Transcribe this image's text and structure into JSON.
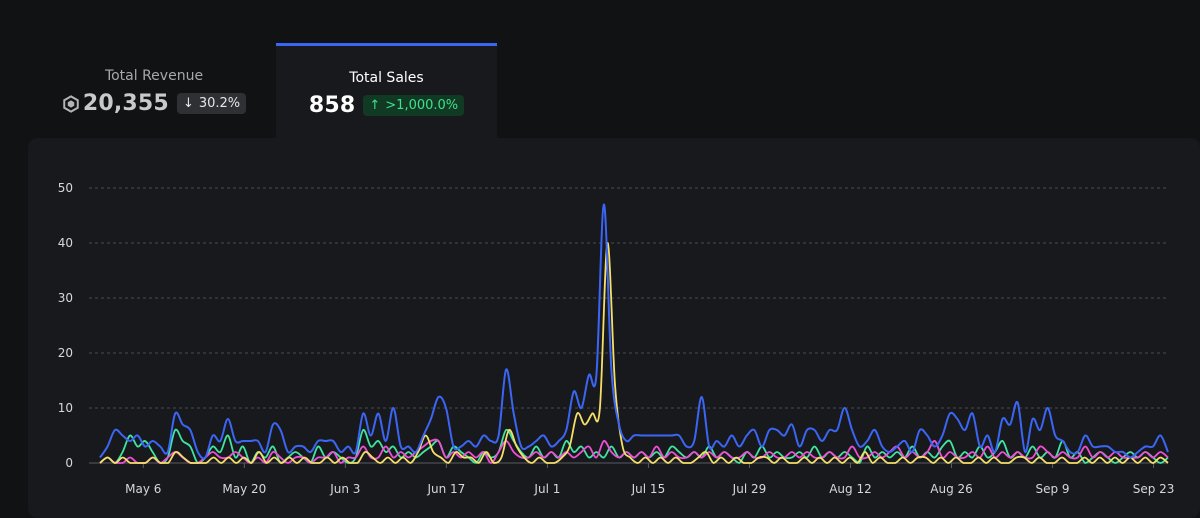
{
  "tabs": {
    "revenue": {
      "label": "Total Revenue",
      "value": "20,355",
      "change": "30.2%",
      "direction": "down",
      "icon": "token-icon"
    },
    "sales": {
      "label": "Total Sales",
      "value": "858",
      "change": ">1,000.0%",
      "direction": "up"
    }
  },
  "colors": {
    "background": "#111214",
    "panel": "#18191d",
    "active_tab_border": "#3b66f5",
    "badge_up_bg": "#113a25",
    "badge_up_text": "#40e08a",
    "badge_down_bg": "#2e3033"
  },
  "chart_data": {
    "type": "line",
    "ylim": [
      0,
      50
    ],
    "yticks": [
      0,
      10,
      20,
      30,
      40,
      50
    ],
    "grid": true,
    "x_range": [
      "2024-04-30",
      "2024-09-25"
    ],
    "x_tick_labels": [
      "May 6",
      "May 20",
      "Jun 3",
      "Jun 17",
      "Jul 1",
      "Jul 15",
      "Jul 29",
      "Aug 12",
      "Aug 26",
      "Sep 9",
      "Sep 23"
    ],
    "series": [
      {
        "color": "#3b66f5",
        "values": [
          1,
          3,
          6,
          5,
          4,
          5,
          3,
          4,
          3,
          2,
          9,
          7,
          6,
          2,
          1,
          5,
          4,
          8,
          4,
          4,
          4,
          4,
          2,
          7,
          6,
          2,
          3,
          3,
          2,
          4,
          4,
          4,
          2,
          3,
          2,
          9,
          5,
          9,
          4,
          10,
          3,
          3,
          2,
          5,
          8,
          12,
          10,
          3,
          3,
          4,
          3,
          5,
          4,
          5,
          17,
          9,
          3,
          3,
          4,
          5,
          3,
          4,
          6,
          13,
          10,
          16,
          16,
          47,
          17,
          7,
          4,
          5,
          5,
          5,
          5,
          5,
          5,
          5,
          3,
          4,
          12,
          3,
          4,
          3,
          5,
          3,
          5,
          6,
          3,
          6,
          6,
          5,
          7,
          3,
          6,
          6,
          4,
          6,
          6,
          10,
          6,
          3,
          4,
          6,
          3,
          2,
          3,
          4,
          2,
          6,
          5,
          3,
          5,
          9,
          8,
          6,
          9,
          3,
          5,
          2,
          8,
          7,
          11,
          2,
          8,
          6,
          10,
          5,
          4,
          2,
          2,
          5,
          3,
          3,
          3,
          2,
          2,
          1,
          2,
          3,
          3,
          5,
          2
        ]
      },
      {
        "color": "#f5df6a",
        "values": [
          0,
          1,
          0,
          1,
          0,
          0,
          0,
          1,
          0,
          0,
          2,
          1,
          0,
          0,
          0,
          1,
          0,
          1,
          0,
          1,
          0,
          2,
          0,
          1,
          0,
          1,
          0,
          1,
          0,
          0,
          1,
          0,
          1,
          0,
          0,
          2,
          1,
          0,
          1,
          0,
          1,
          0,
          2,
          5,
          2,
          1,
          0,
          2,
          1,
          1,
          0,
          2,
          0,
          1,
          6,
          3,
          1,
          0,
          1,
          0,
          0,
          1,
          3,
          9,
          7,
          9,
          10,
          40,
          14,
          3,
          1,
          0,
          1,
          0,
          1,
          0,
          1,
          0,
          0,
          1,
          2,
          0,
          1,
          0,
          1,
          0,
          0,
          1,
          1,
          0,
          1,
          0,
          0,
          1,
          0,
          1,
          0,
          1,
          0,
          1,
          0,
          2,
          0,
          1,
          0,
          0,
          1,
          0,
          1,
          1,
          0,
          1,
          0,
          1,
          0,
          0,
          1,
          0,
          1,
          0,
          0,
          1,
          1,
          0,
          1,
          0,
          0,
          1,
          0,
          0,
          1,
          0,
          1,
          0,
          1,
          0,
          1,
          0,
          1,
          0,
          1,
          0
        ]
      },
      {
        "color": "#ef4fd6",
        "values": [
          0,
          1,
          0,
          0,
          1,
          0,
          0,
          1,
          0,
          1,
          2,
          1,
          0,
          0,
          1,
          2,
          1,
          1,
          2,
          1,
          0,
          1,
          0,
          2,
          1,
          0,
          1,
          1,
          0,
          1,
          1,
          2,
          0,
          1,
          1,
          3,
          1,
          1,
          3,
          1,
          2,
          1,
          2,
          3,
          4,
          4,
          1,
          2,
          1,
          2,
          1,
          2,
          0,
          2,
          4,
          2,
          1,
          1,
          2,
          1,
          2,
          1,
          2,
          1,
          2,
          3,
          1,
          4,
          2,
          1,
          2,
          1,
          2,
          1,
          3,
          1,
          2,
          1,
          1,
          2,
          1,
          2,
          1,
          2,
          1,
          1,
          2,
          1,
          1,
          2,
          1,
          1,
          2,
          1,
          2,
          1,
          1,
          2,
          1,
          1,
          3,
          1,
          1,
          2,
          1,
          2,
          3,
          1,
          2,
          1,
          2,
          4,
          1,
          2,
          1,
          1,
          2,
          1,
          3,
          1,
          2,
          1,
          2,
          1,
          1,
          3,
          2,
          1,
          2,
          1,
          1,
          3,
          1,
          2,
          1,
          2,
          1,
          1,
          1,
          2,
          1,
          2,
          1
        ]
      },
      {
        "color": "#3ee6a0",
        "values": [
          0,
          1,
          0,
          2,
          5,
          3,
          4,
          2,
          0,
          1,
          6,
          4,
          3,
          0,
          1,
          3,
          2,
          5,
          1,
          3,
          0,
          2,
          1,
          3,
          0,
          1,
          2,
          1,
          0,
          3,
          1,
          2,
          1,
          0,
          1,
          6,
          3,
          4,
          2,
          3,
          1,
          2,
          1,
          2,
          3,
          4,
          1,
          3,
          2,
          1,
          0,
          2,
          1,
          2,
          6,
          4,
          2,
          1,
          3,
          1,
          2,
          1,
          4,
          2,
          3,
          1,
          2,
          1,
          3,
          1,
          2,
          1,
          2,
          1,
          2,
          1,
          3,
          2,
          1,
          2,
          1,
          3,
          1,
          2,
          1,
          0,
          2,
          1,
          3,
          1,
          2,
          1,
          1,
          2,
          1,
          3,
          1,
          2,
          1,
          2,
          1,
          0,
          3,
          1,
          2,
          1,
          2,
          1,
          3,
          1,
          2,
          1,
          3,
          4,
          1,
          2,
          1,
          3,
          1,
          2,
          4,
          1,
          2,
          1,
          3,
          1,
          2,
          1,
          4,
          1,
          2,
          0,
          1,
          2,
          1,
          0,
          1,
          2,
          1,
          2,
          1,
          0,
          1
        ]
      }
    ]
  }
}
